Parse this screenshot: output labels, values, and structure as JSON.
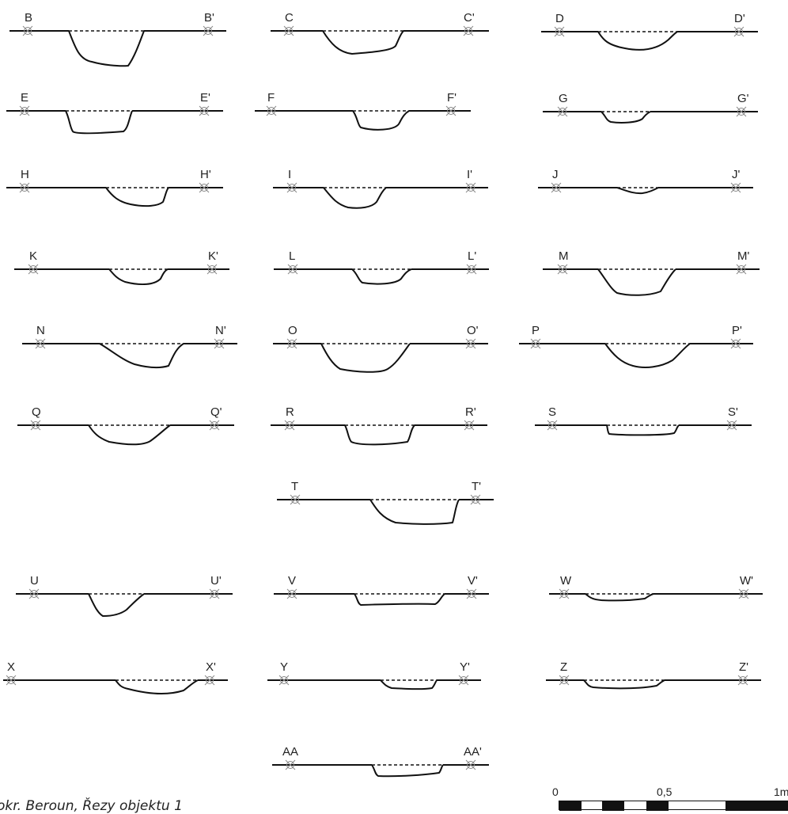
{
  "sections": [
    {
      "left": "B",
      "right": "B'"
    },
    {
      "left": "C",
      "right": "C'"
    },
    {
      "left": "D",
      "right": "D'"
    },
    {
      "left": "E",
      "right": "E'"
    },
    {
      "left": "F",
      "right": "F'"
    },
    {
      "left": "G",
      "right": "G'"
    },
    {
      "left": "H",
      "right": "H'"
    },
    {
      "left": "I",
      "right": "I'"
    },
    {
      "left": "J",
      "right": "J'"
    },
    {
      "left": "K",
      "right": "K'"
    },
    {
      "left": "L",
      "right": "L'"
    },
    {
      "left": "M",
      "right": "M'"
    },
    {
      "left": "N",
      "right": "N'"
    },
    {
      "left": "O",
      "right": "O'"
    },
    {
      "left": "P",
      "right": "P'"
    },
    {
      "left": "Q",
      "right": "Q'"
    },
    {
      "left": "R",
      "right": "R'"
    },
    {
      "left": "S",
      "right": "S'"
    },
    {
      "left": "T",
      "right": "T'"
    },
    {
      "left": "U",
      "right": "U'"
    },
    {
      "left": "V",
      "right": "V'"
    },
    {
      "left": "W",
      "right": "W'"
    },
    {
      "left": "X",
      "right": "X'"
    },
    {
      "left": "Y",
      "right": "Y'"
    },
    {
      "left": "Z",
      "right": "Z'"
    },
    {
      "left": "AA",
      "right": "AA'"
    }
  ],
  "caption": "okr. Beroun, Řezy objektu 1",
  "scale": {
    "labels": [
      "0",
      "0,5",
      "1m"
    ]
  }
}
